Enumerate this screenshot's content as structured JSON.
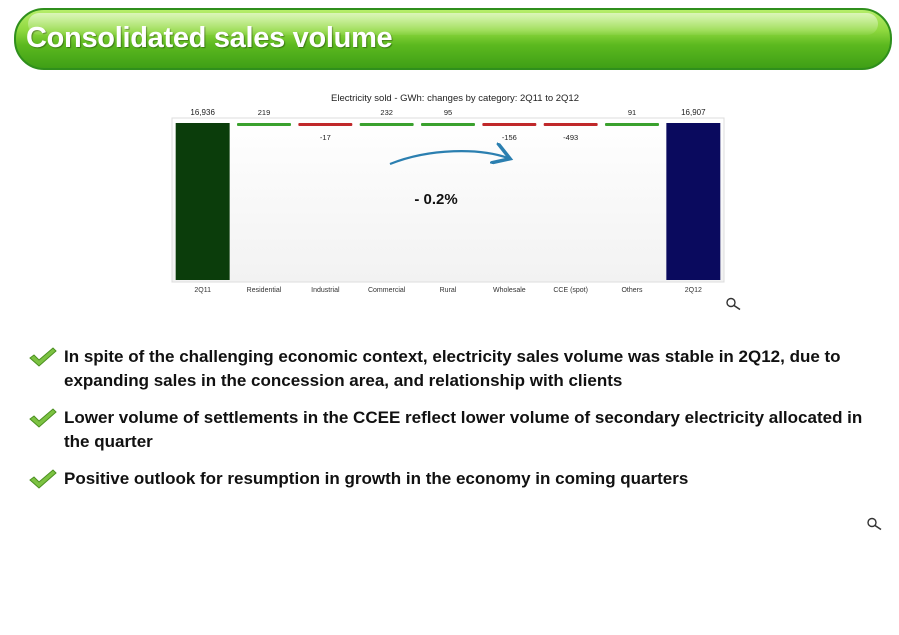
{
  "title": "Consolidated sales volume",
  "chart_data": {
    "type": "bar",
    "subtype": "waterfall",
    "title": "Electricity sold - GWh: changes by category: 2Q11 to 2Q12",
    "categories": [
      "2Q11",
      "Residential",
      "Industrial",
      "Commercial",
      "Rural",
      "Wholesale",
      "CCE (spot)",
      "Others",
      "2Q12"
    ],
    "values": [
      16936,
      219,
      -17,
      232,
      95,
      -156,
      -493,
      91,
      16907
    ],
    "value_labels": [
      "16,936",
      "219",
      "-17",
      "232",
      "95",
      "-156",
      "-493",
      "91",
      "16,907"
    ],
    "bar_kinds": [
      "total",
      "delta",
      "delta",
      "delta",
      "delta",
      "delta",
      "delta",
      "delta",
      "total"
    ],
    "annotation": "- 0.2%",
    "colors": {
      "start_total": "#0b3d0b",
      "end_total": "#0a0a5e",
      "increase": "#3aa12e",
      "decrease": "#c0282a",
      "arrow": "#2b7fb0"
    }
  },
  "bullets": [
    "In spite of the challenging economic context, electricity sales volume was stable in 2Q12, due to expanding sales in the concession area, and relationship with clients",
    "Lower volume of settlements in the CCEE reflect lower volume of secondary electricity allocated in the quarter",
    "Positive outlook for resumption in growth in the economy in coming quarters"
  ],
  "icons": {
    "bullet": "checkmark-icon",
    "zoom": "magnifier-icon"
  }
}
